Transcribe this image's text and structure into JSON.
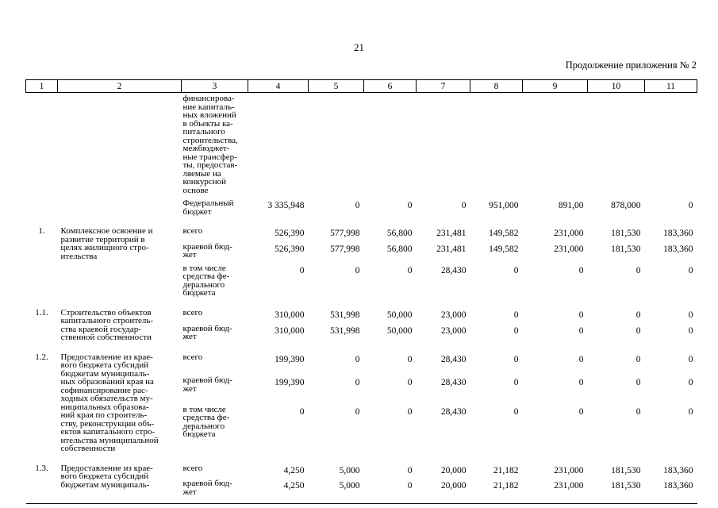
{
  "page": {
    "number": "21",
    "continuation": "Продолжение приложения № 2"
  },
  "table": {
    "header_cols": [
      "1",
      "2",
      "3",
      "4",
      "5",
      "6",
      "7",
      "8",
      "9",
      "10",
      "11"
    ],
    "rows": [
      {
        "num": "",
        "name": "",
        "subs": [
          {
            "label": "финансирова-\nние капиталь-\nных вложений\nв объекты ка-\nпитального\nстроительства,\nмежбюджет-\nные трансфер-\nты, предостав-\nляемые на\nконкурсной\nоснове",
            "values": []
          },
          {
            "label": "Федеральный\nбюджет",
            "values": [
              "3 335,948",
              "0",
              "0",
              "0",
              "951,000",
              "891,00",
              "878,000",
              "0"
            ]
          }
        ]
      },
      {
        "num": "1.",
        "name": "Комплексное освоение и\nразвитие территорий в\nцелях жилищного стро-\nительства",
        "subs": [
          {
            "label": "всего",
            "values": [
              "526,390",
              "577,998",
              "56,800",
              "231,481",
              "149,582",
              "231,000",
              "181,530",
              "183,360"
            ]
          },
          {
            "label": "краевой бюд-\nжет",
            "values": [
              "526,390",
              "577,998",
              "56,800",
              "231,481",
              "149,582",
              "231,000",
              "181,530",
              "183,360"
            ]
          },
          {
            "label": "в том числе\nсредства фе-\nдерального\nбюджета",
            "values": [
              "0",
              "0",
              "0",
              "28,430",
              "0",
              "0",
              "0",
              "0"
            ]
          }
        ]
      },
      {
        "num": "1.1.",
        "name": "Строительство объектов\nкапитального строитель-\nства краевой государ-\nственной собственности",
        "subs": [
          {
            "label": "всего",
            "values": [
              "310,000",
              "531,998",
              "50,000",
              "23,000",
              "0",
              "0",
              "0",
              "0"
            ]
          },
          {
            "label": "краевой бюд-\nжет",
            "values": [
              "310,000",
              "531,998",
              "50,000",
              "23,000",
              "0",
              "0",
              "0",
              "0"
            ]
          }
        ]
      },
      {
        "num": "1.2.",
        "name": "Предоставление из крае-\nвого бюджета субсидий\nбюджетам муниципаль-\nных образований края на\nсофинансирование рас-\nходных обязательств му-\nниципальных образова-\nний края по строитель-\nству, реконструкции объ-\nектов капитального стро-\nительства муниципальной\nсобственности",
        "subs": [
          {
            "label": "всего",
            "values": [
              "199,390",
              "0",
              "0",
              "28,430",
              "0",
              "0",
              "0",
              "0"
            ]
          },
          {
            "label": "краевой бюд-\nжет",
            "values": [
              "199,390",
              "0",
              "0",
              "28,430",
              "0",
              "0",
              "0",
              "0"
            ]
          },
          {
            "label": "в том числе\nсредства фе-\nдерального\nбюджета",
            "values": [
              "0",
              "0",
              "0",
              "28,430",
              "0",
              "0",
              "0",
              "0"
            ]
          }
        ]
      },
      {
        "num": "1.3.",
        "name": "Предоставление из крае-\nвого бюджета субсидий\nбюджетам муниципаль-",
        "subs": [
          {
            "label": "всего",
            "values": [
              "4,250",
              "5,000",
              "0",
              "20,000",
              "21,182",
              "231,000",
              "181,530",
              "183,360"
            ]
          },
          {
            "label": "краевой бюд-\nжет",
            "values": [
              "4,250",
              "5,000",
              "0",
              "20,000",
              "21,182",
              "231,000",
              "181,530",
              "183,360"
            ]
          }
        ]
      }
    ]
  }
}
